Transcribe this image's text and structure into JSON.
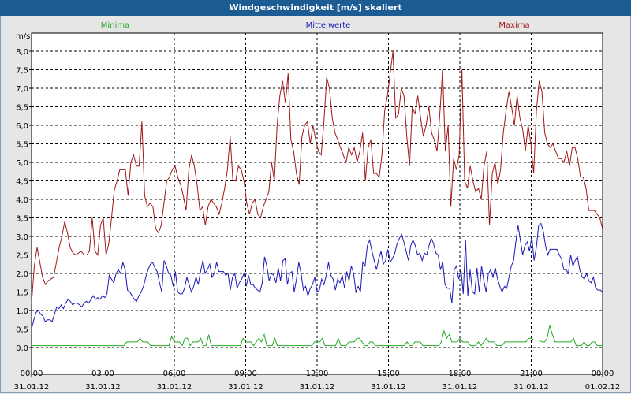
{
  "window": {
    "title": "Windgeschwindigkeit [m/s] skaliert"
  },
  "chart_data": {
    "type": "line",
    "title": "Windgeschwindigkeit [m/s] skaliert",
    "ylabel": "m/s",
    "xlabel": "",
    "ylim": [
      0,
      8.2
    ],
    "xlim": [
      0,
      24
    ],
    "grid": true,
    "y_ticks": [
      "0,0",
      "0,5",
      "1,0",
      "1,5",
      "2,0",
      "2,5",
      "3,0",
      "3,5",
      "4,0",
      "4,5",
      "5,0",
      "5,5",
      "6,0",
      "6,5",
      "7,0",
      "7,5",
      "8,0"
    ],
    "x_ticks": [
      {
        "time": "00:00",
        "date": "31.01.12"
      },
      {
        "time": "03:00",
        "date": "31.01.12"
      },
      {
        "time": "06:00",
        "date": "31.01.12"
      },
      {
        "time": "09:00",
        "date": "31.01.12"
      },
      {
        "time": "12:00",
        "date": "31.01.12"
      },
      {
        "time": "15:00",
        "date": "31.01.12"
      },
      {
        "time": "18:00",
        "date": "31.01.12"
      },
      {
        "time": "21:00",
        "date": "31.01.12"
      },
      {
        "time": "00:00",
        "date": "01.02.12"
      }
    ],
    "series": [
      {
        "name": "Minima",
        "color": "#22aa22",
        "values": [
          0.05,
          0.05,
          0.05,
          0.05,
          0.05,
          0.05,
          0.05,
          0.05,
          0.05,
          0.05,
          0.05,
          0.05,
          0.05,
          0.05,
          0.05,
          0.05,
          0.05,
          0.05,
          0.05,
          0.05,
          0.05,
          0.05,
          0.05,
          0.05,
          0.05,
          0.05,
          0.05,
          0.05,
          0.05,
          0.05,
          0.05,
          0.05,
          0.05,
          0.05,
          0.05,
          0.05,
          0.15,
          0.15,
          0.15,
          0.15,
          0.15,
          0.25,
          0.15,
          0.15,
          0.15,
          0.05,
          0.05,
          0.05,
          0.05,
          0.05,
          0.05,
          0.05,
          0.05,
          0.3,
          0.15,
          0.15,
          0.15,
          0.05,
          0.25,
          0.25,
          0.05,
          0.15,
          0.15,
          0.15,
          0.25,
          0.05,
          0.05,
          0.35,
          0.05,
          0.05,
          0.05,
          0.05,
          0.05,
          0.05,
          0.05,
          0.05,
          0.05,
          0.05,
          0.05,
          0.05,
          0.25,
          0.15,
          0.15,
          0.15,
          0.05,
          0.15,
          0.25,
          0.15,
          0.35,
          0.05,
          0.05,
          0.05,
          0.25,
          0.05,
          0.05,
          0.05,
          0.05,
          0.05,
          0.05,
          0.05,
          0.05,
          0.05,
          0.05,
          0.05,
          0.05,
          0.05,
          0.05,
          0.15,
          0.15,
          0.15,
          0.25,
          0.05,
          0.05,
          0.05,
          0.05,
          0.05,
          0.25,
          0.05,
          0.05,
          0.05,
          0.15,
          0.15,
          0.15,
          0.25,
          0.25,
          0.15,
          0.05,
          0.05,
          0.15,
          0.15,
          0.05,
          0.05,
          0.05,
          0.05,
          0.05,
          0.05,
          0.05,
          0.05,
          0.05,
          0.05,
          0.05,
          0.05,
          0.15,
          0.05,
          0.05,
          0.15,
          0.15,
          0.15,
          0.05,
          0.05,
          0.05,
          0.05,
          0.05,
          0.05,
          0.05,
          0.15,
          0.45,
          0.25,
          0.35,
          0.15,
          0.15,
          0.15,
          0.25,
          0.15,
          0.15,
          0.15,
          0.05,
          0.05,
          0.05,
          0.15,
          0.05,
          0.15,
          0.25,
          0.15,
          0.15,
          0.15,
          0.05,
          0.05,
          0.05,
          0.15,
          0.15,
          0.15,
          0.15,
          0.15,
          0.15,
          0.15,
          0.15,
          0.15,
          0.25,
          0.25,
          0.2,
          0.2,
          0.2,
          0.15,
          0.15,
          0.25,
          0.6,
          0.35,
          0.15,
          0.15,
          0.15,
          0.15,
          0.15,
          0.15,
          0.15,
          0.25,
          0.05,
          0.05,
          0.05,
          0.15,
          0.05,
          0.05,
          0.15,
          0.15,
          0.05,
          0.05,
          0.05
        ]
      },
      {
        "name": "Mittelwerte",
        "color": "#1a1ab4",
        "values": [
          0.5,
          0.75,
          0.95,
          1.0,
          0.9,
          0.85,
          0.7,
          0.75,
          0.75,
          0.7,
          0.9,
          1.1,
          1.05,
          1.15,
          1.05,
          1.2,
          1.3,
          1.25,
          1.15,
          1.2,
          1.2,
          1.15,
          1.1,
          1.2,
          1.25,
          1.2,
          1.3,
          1.4,
          1.3,
          1.35,
          1.3,
          1.4,
          1.35,
          1.45,
          1.95,
          1.85,
          1.75,
          2.0,
          2.1,
          2.0,
          2.3,
          2.1,
          1.55,
          1.5,
          1.4,
          1.3,
          1.25,
          1.4,
          1.5,
          1.65,
          1.9,
          2.1,
          2.25,
          2.3,
          2.15,
          2.05,
          1.75,
          1.5,
          2.35,
          2.2,
          2.0,
          1.95,
          1.65,
          2.05,
          1.5,
          1.45,
          1.45,
          1.6,
          1.9,
          1.7,
          1.5,
          1.65,
          1.9,
          1.7,
          2.05,
          2.35,
          2.0,
          2.1,
          2.25,
          1.9,
          2.0,
          2.3,
          2.05,
          2.05,
          2.05,
          1.95,
          2.0,
          1.55,
          1.9,
          2.0,
          1.6,
          1.75,
          1.85,
          2.0,
          1.65,
          1.95,
          1.7,
          1.7,
          1.6,
          1.55,
          1.5,
          1.75,
          2.45,
          2.2,
          1.8,
          2.0,
          1.95,
          1.75,
          2.15,
          1.8,
          2.35,
          2.4,
          1.7,
          2.0,
          2.05,
          1.5,
          1.85,
          2.3,
          2.0,
          1.55,
          1.65,
          1.4,
          1.6,
          1.7,
          1.9,
          1.5,
          1.55,
          1.85,
          1.7,
          1.95,
          2.3,
          1.95,
          1.85,
          1.55,
          1.85,
          1.75,
          1.95,
          1.6,
          2.05,
          1.8,
          2.2,
          2.0,
          1.5,
          1.65,
          1.5,
          2.3,
          2.2,
          2.75,
          2.9,
          2.6,
          2.35,
          2.1,
          2.4,
          2.6,
          2.25,
          2.35,
          2.65,
          2.3,
          2.4,
          2.55,
          2.8,
          2.95,
          3.05,
          2.85,
          2.6,
          2.35,
          2.75,
          2.9,
          2.75,
          2.5,
          2.55,
          2.35,
          2.55,
          2.5,
          2.75,
          2.95,
          2.8,
          2.55,
          2.5,
          2.1,
          2.3,
          1.7,
          1.6,
          1.6,
          1.2,
          2.1,
          2.2,
          1.85,
          2.1,
          1.45,
          2.9,
          1.4,
          2.1,
          1.5,
          1.45,
          2.15,
          1.5,
          2.2,
          1.8,
          1.5,
          2.0,
          2.1,
          1.9,
          2.15,
          1.85,
          1.65,
          1.5,
          1.65,
          1.6,
          1.9,
          2.2,
          2.35,
          2.85,
          3.3,
          2.9,
          2.5,
          2.75,
          2.85,
          2.6,
          3.0,
          2.35,
          2.7,
          3.3,
          3.35,
          3.15,
          2.75,
          2.5,
          2.65,
          2.65,
          2.65,
          2.65,
          2.5,
          2.4,
          2.1,
          2.1,
          2.0,
          2.5,
          2.2,
          2.35,
          2.45,
          2.1,
          1.9,
          1.85,
          2.0,
          1.8,
          1.75,
          1.9,
          1.6,
          1.55,
          1.55,
          1.5
        ]
      },
      {
        "name": "Maxima",
        "color": "#a01818",
        "values": [
          1.2,
          2.2,
          2.7,
          2.3,
          1.9,
          1.7,
          1.8,
          1.85,
          1.9,
          2.3,
          2.7,
          3.0,
          3.4,
          3.1,
          2.7,
          2.55,
          2.5,
          2.55,
          2.6,
          2.5,
          2.5,
          2.6,
          3.5,
          2.6,
          2.5,
          3.3,
          3.5,
          2.5,
          2.8,
          3.5,
          4.25,
          4.5,
          4.8,
          4.8,
          4.8,
          4.1,
          5.0,
          5.2,
          4.9,
          4.9,
          6.1,
          4.1,
          3.8,
          3.9,
          3.8,
          3.2,
          3.1,
          3.3,
          3.9,
          4.5,
          4.6,
          4.8,
          4.9,
          4.6,
          4.4,
          4.1,
          3.7,
          4.8,
          5.2,
          4.9,
          4.4,
          3.7,
          3.8,
          3.3,
          3.8,
          4.0,
          3.9,
          3.8,
          3.6,
          3.9,
          4.3,
          4.8,
          5.7,
          4.5,
          4.5,
          4.9,
          4.8,
          4.5,
          3.9,
          3.6,
          3.9,
          4.0,
          3.6,
          3.5,
          3.8,
          4.0,
          4.2,
          5.0,
          4.5,
          6.0,
          6.8,
          7.2,
          6.6,
          7.4,
          5.6,
          5.3,
          4.7,
          4.4,
          5.7,
          6.0,
          6.1,
          5.5,
          6.0,
          5.6,
          5.3,
          5.2,
          6.1,
          7.3,
          7.0,
          6.2,
          5.8,
          5.6,
          5.4,
          5.2,
          5.0,
          5.4,
          5.2,
          5.4,
          5.0,
          5.3,
          5.8,
          4.5,
          5.4,
          5.6,
          4.7,
          4.7,
          4.6,
          5.2,
          6.4,
          6.8,
          7.4,
          8.0,
          6.2,
          6.3,
          7.0,
          6.8,
          5.7,
          4.9,
          6.5,
          6.3,
          6.8,
          6.2,
          5.7,
          6.0,
          6.5,
          5.8,
          5.6,
          5.3,
          6.3,
          7.5,
          5.3,
          6.0,
          3.8,
          5.1,
          4.8,
          5.2,
          7.5,
          4.5,
          4.3,
          4.9,
          4.5,
          4.2,
          4.3,
          4.0,
          4.9,
          5.3,
          3.3,
          4.7,
          5.0,
          4.4,
          4.8,
          5.8,
          6.4,
          6.9,
          6.5,
          6.0,
          6.8,
          6.2,
          5.9,
          5.3,
          6.0,
          5.5,
          4.7,
          6.4,
          7.2,
          6.9,
          5.8,
          5.5,
          5.4,
          5.5,
          5.3,
          5.1,
          5.1,
          5.0,
          5.3,
          4.9,
          5.4,
          5.4,
          5.1,
          4.6,
          4.6,
          4.3,
          3.7,
          3.7,
          3.7,
          3.6,
          3.5,
          3.2
        ]
      }
    ]
  }
}
